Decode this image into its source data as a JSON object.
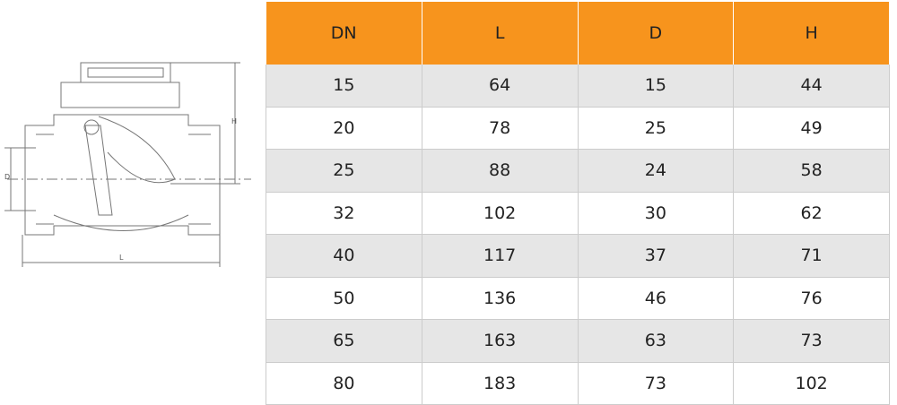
{
  "drawing": {
    "labels": {
      "h": "H",
      "d": "D",
      "l": "L"
    }
  },
  "table": {
    "header": [
      "DN",
      "L",
      "D",
      "H"
    ],
    "rows": [
      [
        "15",
        "64",
        "15",
        "44"
      ],
      [
        "20",
        "78",
        "25",
        "49"
      ],
      [
        "25",
        "88",
        "24",
        "58"
      ],
      [
        "32",
        "102",
        "30",
        "62"
      ],
      [
        "40",
        "117",
        "37",
        "71"
      ],
      [
        "50",
        "136",
        "46",
        "76"
      ],
      [
        "65",
        "163",
        "63",
        "73"
      ],
      [
        "80",
        "183",
        "73",
        "102"
      ]
    ]
  }
}
